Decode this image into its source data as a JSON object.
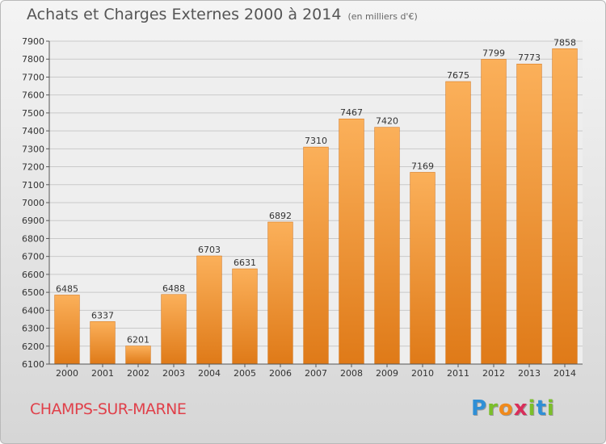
{
  "title": "Achats et Charges Externes 2000 à 2014",
  "subtitle": "(en milliers d'€)",
  "place": "CHAMPS-SUR-MARNE",
  "logo": {
    "letters": [
      {
        "ch": "P",
        "color": "#2f8fd6"
      },
      {
        "ch": "r",
        "color": "#7bbf2a"
      },
      {
        "ch": "o",
        "color": "#f08a1c"
      },
      {
        "ch": "x",
        "color": "#d92e5a"
      },
      {
        "ch": "i",
        "color": "#7bbf2a"
      },
      {
        "ch": "t",
        "color": "#2f8fd6"
      },
      {
        "ch": "i",
        "color": "#7bbf2a"
      }
    ]
  },
  "colors": {
    "bar_light": "#fbb05a",
    "bar_dark": "#df7a18",
    "grid": "#c9c9c9",
    "plot_bg": "#eeeeee"
  },
  "chart_data": {
    "type": "bar",
    "categories": [
      "2000",
      "2001",
      "2002",
      "2003",
      "2004",
      "2005",
      "2006",
      "2007",
      "2008",
      "2009",
      "2010",
      "2011",
      "2012",
      "2013",
      "2014"
    ],
    "values": [
      6485,
      6337,
      6201,
      6488,
      6703,
      6631,
      6892,
      7310,
      7467,
      7420,
      7169,
      7675,
      7799,
      7773,
      7858
    ],
    "ylim": [
      6100,
      7900
    ],
    "yticks": [
      6100,
      6200,
      6300,
      6400,
      6500,
      6600,
      6700,
      6800,
      6900,
      7000,
      7100,
      7200,
      7300,
      7400,
      7500,
      7600,
      7700,
      7800,
      7900
    ],
    "grid": true,
    "legend": "none"
  }
}
